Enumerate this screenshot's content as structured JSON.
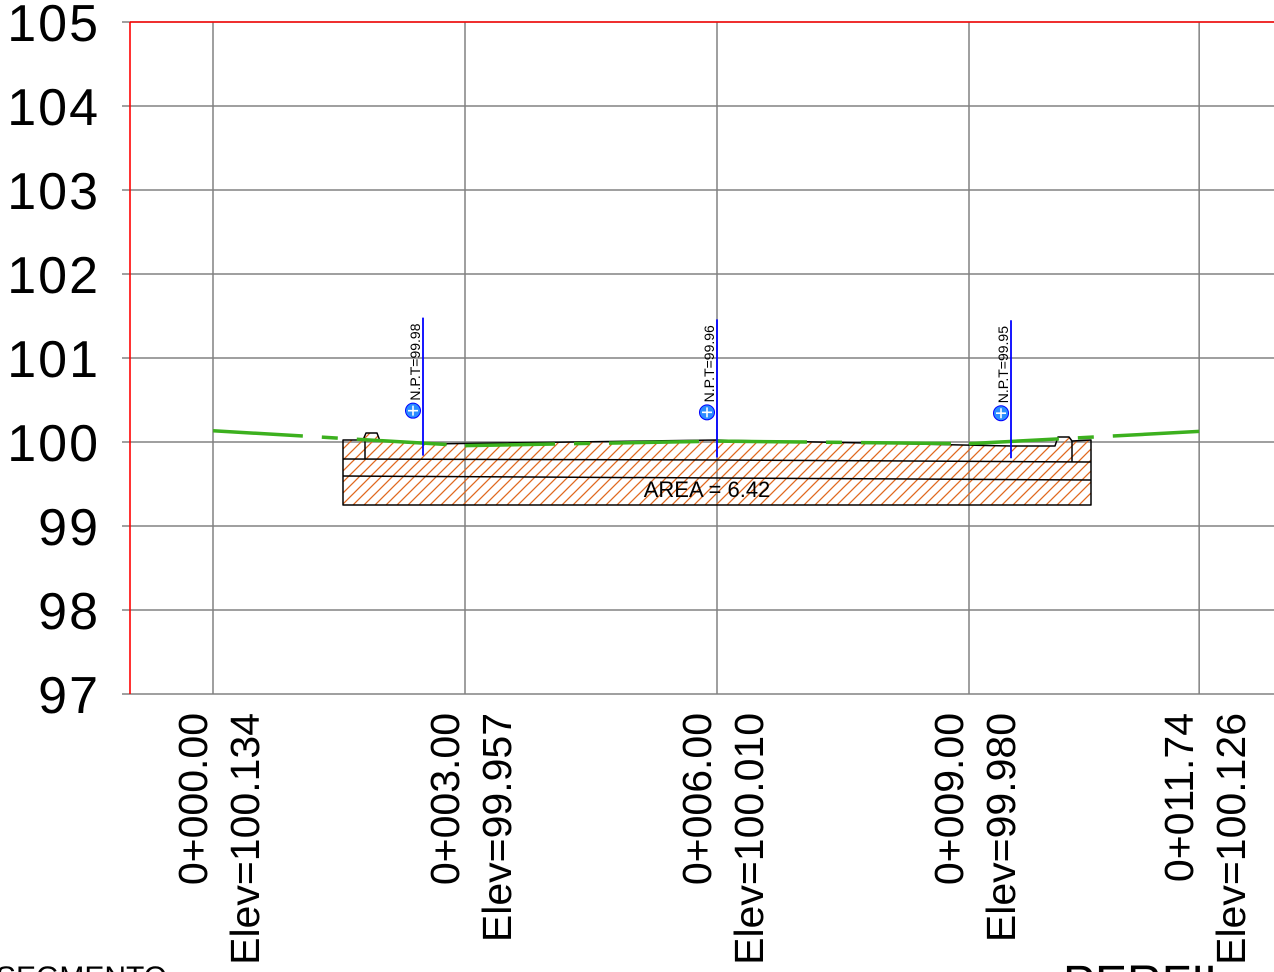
{
  "chart_data": {
    "type": "line",
    "x": [
      0,
      3,
      6,
      9,
      11.74
    ],
    "series": [
      {
        "values": [
          100.134,
          99.957,
          100.01,
          99.98,
          100.126
        ]
      }
    ],
    "x_tick_labels": [
      {
        "station": "0+000.00",
        "elev": "Elev=100.134"
      },
      {
        "station": "0+003.00",
        "elev": "Elev=99.957"
      },
      {
        "station": "0+006.00",
        "elev": "Elev=100.010"
      },
      {
        "station": "0+009.00",
        "elev": "Elev=99.980"
      },
      {
        "station": "0+011.74",
        "elev": "Elev=100.126"
      }
    ],
    "yticks": [
      97,
      98,
      99,
      100,
      101,
      102,
      103,
      104,
      105
    ],
    "ytick_labels": [
      "97",
      "98",
      "99",
      "100",
      "101",
      "102",
      "103",
      "104",
      "105"
    ],
    "ylim": [
      97,
      105
    ],
    "grid": true,
    "annotations": [
      {
        "text": "N.P.T=99.98",
        "x": 2.5,
        "y": 99.98
      },
      {
        "text": "N.P.T=99.96",
        "x": 6,
        "y": 99.96
      },
      {
        "text": "N.P.T=99.95",
        "x": 9.5,
        "y": 99.95
      }
    ],
    "area_label": "AREA = 6.42"
  },
  "footer": {
    "left": "SEGMENTO",
    "right": "PERFIL"
  },
  "colors": {
    "grid": "#808080",
    "frame": "#ff0000",
    "ground": "#3cb01e",
    "outline": "#000000",
    "hatch": "#e0691f",
    "marker_line": "#0000ff",
    "marker_symbol": "#2b8cff",
    "footer_right": "#ff0000"
  }
}
